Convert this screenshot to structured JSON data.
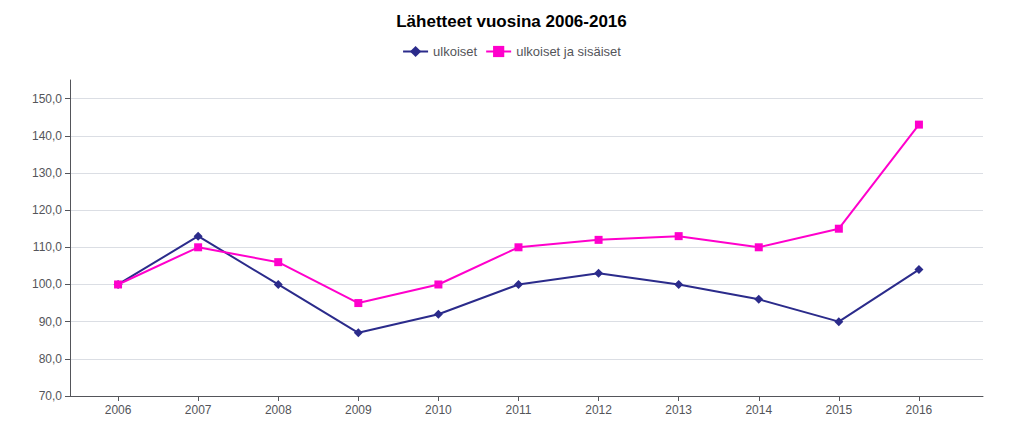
{
  "chart_data": {
    "type": "line",
    "title": "Lähetteet vuosina 2006-2016",
    "x": [
      2006,
      2007,
      2008,
      2009,
      2010,
      2011,
      2012,
      2013,
      2014,
      2015,
      2016
    ],
    "series": [
      {
        "name": "ulkoiset",
        "color": "#2B2B8B",
        "marker": "diamond",
        "values": [
          100.0,
          113.0,
          100.0,
          87.0,
          92.0,
          100.0,
          103.0,
          100.0,
          96.0,
          90.0,
          104.0
        ]
      },
      {
        "name": "ulkoiset ja sisäiset",
        "color": "#FF00CC",
        "marker": "square",
        "values": [
          100.0,
          110.0,
          106.0,
          95.0,
          100.0,
          110.0,
          112.0,
          113.0,
          110.0,
          115.0,
          143.0
        ]
      }
    ],
    "xlim": [
      2005.4,
      2016.8
    ],
    "xticks": [
      2006,
      2007,
      2008,
      2009,
      2010,
      2011,
      2012,
      2013,
      2014,
      2015,
      2016
    ],
    "ylim": [
      70.0,
      155.0
    ],
    "yticks": [
      {
        "value": 70.0,
        "label": "70,0"
      },
      {
        "value": 80.0,
        "label": "80,0"
      },
      {
        "value": 90.0,
        "label": "90,0"
      },
      {
        "value": 100.0,
        "label": "100,0"
      },
      {
        "value": 110.0,
        "label": "110,0"
      },
      {
        "value": 120.0,
        "label": "120,0"
      },
      {
        "value": 130.0,
        "label": "130,0"
      },
      {
        "value": 140.0,
        "label": "140,0"
      },
      {
        "value": 150.0,
        "label": "150,0"
      }
    ],
    "grid": "y",
    "legend": "top"
  }
}
